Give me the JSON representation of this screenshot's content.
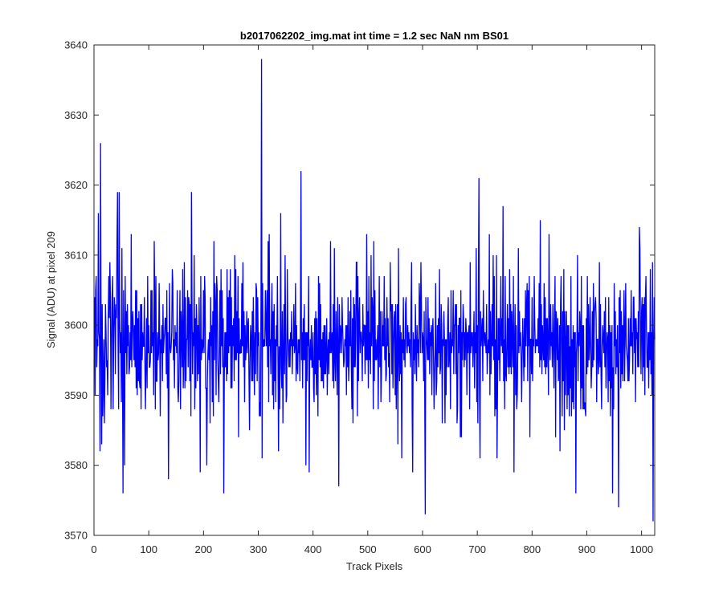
{
  "chart_data": {
    "type": "line",
    "title": "b2017062202_img.mat int time = 1.2 sec  NaN nm BS01",
    "xlabel": "Track Pixels",
    "ylabel": "Signal (ADU) at pixel 209",
    "xlim": [
      0,
      1024
    ],
    "ylim": [
      3570,
      3640
    ],
    "xticks": [
      0,
      100,
      200,
      300,
      400,
      500,
      600,
      700,
      800,
      900,
      1000
    ],
    "yticks": [
      3570,
      3580,
      3590,
      3600,
      3610,
      3620,
      3630,
      3640
    ],
    "grid": false,
    "series": [
      {
        "color": "#0000ff",
        "x_start": 1,
        "x_step": 1,
        "count": 1024,
        "mean": 3597.5,
        "stdev": 6,
        "features": [
          {
            "x": 3,
            "y": 3605
          },
          {
            "x": 8,
            "y": 3616
          },
          {
            "x": 12,
            "y": 3626
          },
          {
            "x": 16,
            "y": 3587
          },
          {
            "x": 25,
            "y": 3590
          },
          {
            "x": 43,
            "y": 3619
          },
          {
            "x": 46,
            "y": 3619
          },
          {
            "x": 53,
            "y": 3576
          },
          {
            "x": 56,
            "y": 3580
          },
          {
            "x": 136,
            "y": 3578
          },
          {
            "x": 178,
            "y": 3619
          },
          {
            "x": 194,
            "y": 3579
          },
          {
            "x": 206,
            "y": 3580
          },
          {
            "x": 237,
            "y": 3576
          },
          {
            "x": 306,
            "y": 3638
          },
          {
            "x": 307,
            "y": 3581
          },
          {
            "x": 378,
            "y": 3622
          },
          {
            "x": 393,
            "y": 3579
          },
          {
            "x": 447,
            "y": 3577
          },
          {
            "x": 582,
            "y": 3579
          },
          {
            "x": 605,
            "y": 3573
          },
          {
            "x": 703,
            "y": 3621
          },
          {
            "x": 880,
            "y": 3576
          },
          {
            "x": 947,
            "y": 3576
          },
          {
            "x": 958,
            "y": 3574
          },
          {
            "x": 997,
            "y": 3611
          },
          {
            "x": 1008,
            "y": 3607
          },
          {
            "x": 1020,
            "y": 3609
          },
          {
            "x": 1021,
            "y": 3572
          },
          {
            "x": 1024,
            "y": 3598
          }
        ]
      }
    ]
  }
}
